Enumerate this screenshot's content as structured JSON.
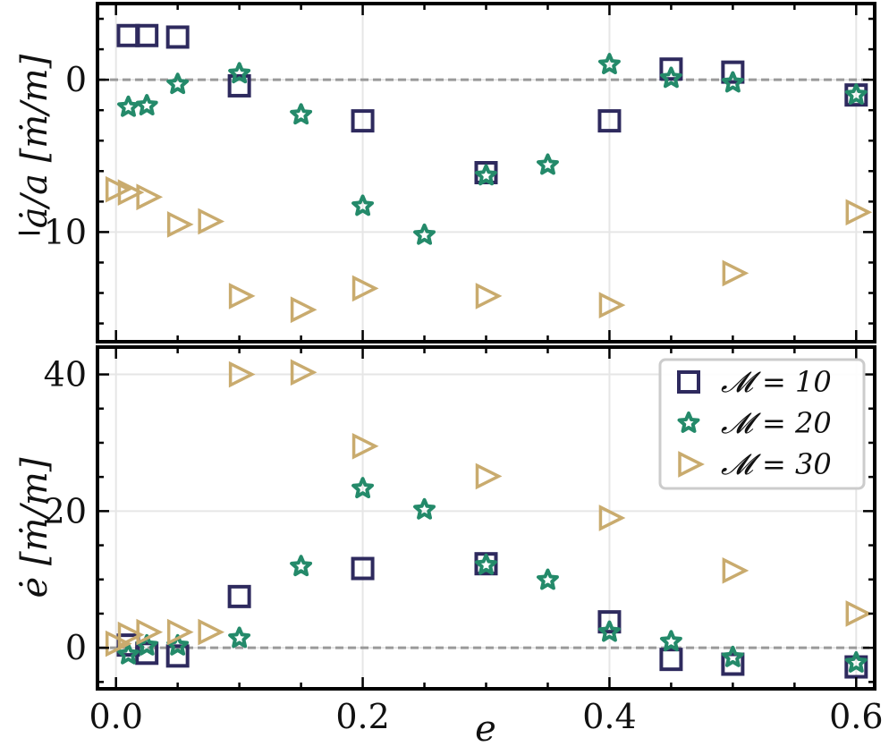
{
  "chart_data": [
    {
      "type": "scatter",
      "ylabel": "ȧ/a [ṁ/m]",
      "xlim": [
        -0.015,
        0.615
      ],
      "ylim": [
        -17.2,
        5.0
      ],
      "yticks": [
        -10,
        0
      ],
      "ytick_labels": [
        "−10",
        "0"
      ],
      "grid": true,
      "reference_line": 0,
      "series": [
        {
          "name": "𝓜 = 10",
          "marker": "square",
          "color": "#2e2a5e",
          "x": [
            0.01,
            0.025,
            0.05,
            0.1,
            0.2,
            0.3,
            0.4,
            0.45,
            0.5,
            0.6
          ],
          "y": [
            2.9,
            2.9,
            2.8,
            -0.4,
            -2.7,
            -6.1,
            -2.7,
            0.7,
            0.5,
            -1.0
          ]
        },
        {
          "name": "𝓜 = 20",
          "marker": "star",
          "color": "#248a6a",
          "x": [
            0.01,
            0.025,
            0.05,
            0.1,
            0.15,
            0.2,
            0.25,
            0.3,
            0.35,
            0.4,
            0.45,
            0.5,
            0.6
          ],
          "y": [
            -1.8,
            -1.7,
            -0.3,
            0.4,
            -2.3,
            -8.3,
            -10.2,
            -6.3,
            -5.6,
            1.0,
            0.1,
            -0.2,
            -1.0
          ]
        },
        {
          "name": "𝓜 = 30",
          "marker": "triangle-right",
          "color": "#c9ab6e",
          "x": [
            0.0,
            0.01,
            0.025,
            0.05,
            0.075,
            0.1,
            0.15,
            0.2,
            0.3,
            0.4,
            0.5,
            0.6
          ],
          "y": [
            -7.2,
            -7.4,
            -7.7,
            -9.5,
            -9.3,
            -14.2,
            -15.1,
            -13.7,
            -14.2,
            -14.8,
            -12.7,
            -8.7
          ]
        }
      ]
    },
    {
      "type": "scatter",
      "xlabel": "e",
      "ylabel": "ė [ṁ/m]",
      "xlim": [
        -0.015,
        0.615
      ],
      "ylim": [
        -6.0,
        44.0
      ],
      "yticks": [
        0,
        20,
        40
      ],
      "ytick_labels": [
        "0",
        "20",
        "40"
      ],
      "xticks": [
        0.0,
        0.2,
        0.4,
        0.6
      ],
      "xtick_labels": [
        "0.0",
        "0.2",
        "0.4",
        "0.6"
      ],
      "grid": true,
      "reference_line": 0,
      "legend": {
        "placement": "top-right",
        "entries": [
          "𝓜 = 10",
          "𝓜 = 20",
          "𝓜 = 30"
        ]
      },
      "series": [
        {
          "name": "𝓜 = 10",
          "marker": "square",
          "color": "#2e2a5e",
          "x": [
            0.01,
            0.025,
            0.05,
            0.1,
            0.2,
            0.3,
            0.4,
            0.45,
            0.5,
            0.6
          ],
          "y": [
            0.4,
            -0.8,
            -1.2,
            7.5,
            11.6,
            12.3,
            3.8,
            -1.7,
            -2.4,
            -2.8
          ]
        },
        {
          "name": "𝓜 = 20",
          "marker": "star",
          "color": "#248a6a",
          "x": [
            0.01,
            0.025,
            0.05,
            0.1,
            0.15,
            0.2,
            0.25,
            0.3,
            0.35,
            0.4,
            0.45,
            0.5,
            0.6
          ],
          "y": [
            -1.0,
            0.3,
            0.3,
            1.4,
            11.9,
            23.3,
            20.2,
            12.1,
            9.9,
            2.3,
            0.9,
            -1.4,
            -2.2
          ]
        },
        {
          "name": "𝓜 = 30",
          "marker": "triangle-right",
          "color": "#c9ab6e",
          "x": [
            0.0,
            0.01,
            0.025,
            0.05,
            0.075,
            0.1,
            0.15,
            0.2,
            0.3,
            0.4,
            0.5,
            0.6
          ],
          "y": [
            0.6,
            1.9,
            2.3,
            2.3,
            2.3,
            40.0,
            40.3,
            29.5,
            25.1,
            19.0,
            11.3,
            5.0
          ]
        }
      ]
    }
  ]
}
